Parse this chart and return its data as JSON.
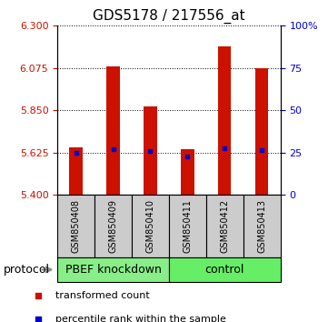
{
  "title": "GDS5178 / 217556_at",
  "samples": [
    "GSM850408",
    "GSM850409",
    "GSM850410",
    "GSM850411",
    "GSM850412",
    "GSM850413"
  ],
  "bar_tops": [
    5.655,
    6.082,
    5.872,
    5.643,
    6.192,
    6.075
  ],
  "bar_base": 5.4,
  "percentile_values": [
    5.623,
    5.645,
    5.633,
    5.605,
    5.648,
    5.636
  ],
  "ylim": [
    5.4,
    6.3
  ],
  "yticks_left": [
    5.4,
    5.625,
    5.85,
    6.075,
    6.3
  ],
  "yticks_right": [
    0,
    25,
    50,
    75,
    100
  ],
  "bar_color": "#cc1100",
  "dot_color": "#0000cc",
  "groups": [
    {
      "label": "PBEF knockdown",
      "indices": [
        0,
        1,
        2
      ],
      "color": "#88ee88"
    },
    {
      "label": "control",
      "indices": [
        3,
        4,
        5
      ],
      "color": "#66ee66"
    }
  ],
  "protocol_label": "protocol",
  "legend_items": [
    {
      "label": "transformed count",
      "color": "#cc1100"
    },
    {
      "label": "percentile rank within the sample",
      "color": "#0000cc"
    }
  ],
  "bar_width": 0.35,
  "title_fontsize": 11,
  "tick_fontsize": 8,
  "sample_fontsize": 7,
  "group_fontsize": 9,
  "legend_fontsize": 8
}
